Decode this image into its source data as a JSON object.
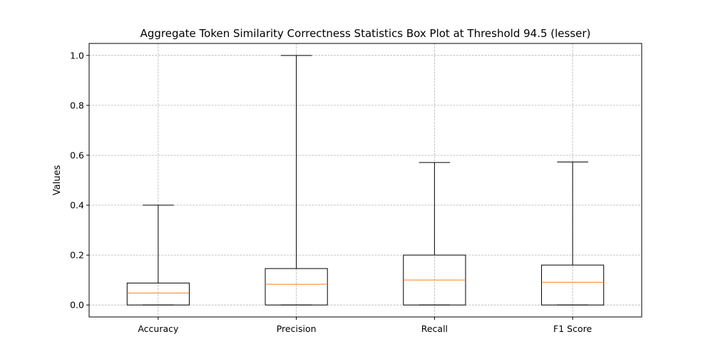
{
  "chart_data": {
    "type": "box",
    "title": "Aggregate Token Similarity Correctness Statistics Box Plot at Threshold 94.5 (lesser)",
    "xlabel": "",
    "ylabel": "Values",
    "ylim": [
      -0.048,
      1.048
    ],
    "yticks": [
      0.0,
      0.2,
      0.4,
      0.6,
      0.8,
      1.0
    ],
    "ytick_labels": [
      "0.0",
      "0.2",
      "0.4",
      "0.6",
      "0.8",
      "1.0"
    ],
    "grid": true,
    "categories": [
      "Accuracy",
      "Precision",
      "Recall",
      "F1 Score"
    ],
    "boxes": [
      {
        "label": "Accuracy",
        "whislo": 0.0,
        "q1": 0.0,
        "med": 0.048,
        "q3": 0.088,
        "whishi": 0.4
      },
      {
        "label": "Precision",
        "whislo": 0.0,
        "q1": 0.0,
        "med": 0.083,
        "q3": 0.146,
        "whishi": 1.0
      },
      {
        "label": "Recall",
        "whislo": 0.0,
        "q1": 0.0,
        "med": 0.1,
        "q3": 0.2,
        "whishi": 0.571
      },
      {
        "label": "F1 Score",
        "whislo": 0.0,
        "q1": 0.0,
        "med": 0.091,
        "q3": 0.16,
        "whishi": 0.573
      }
    ],
    "colors": {
      "median": "#ff7f0e",
      "box": "#000000",
      "grid": "#b0b0b0"
    }
  }
}
